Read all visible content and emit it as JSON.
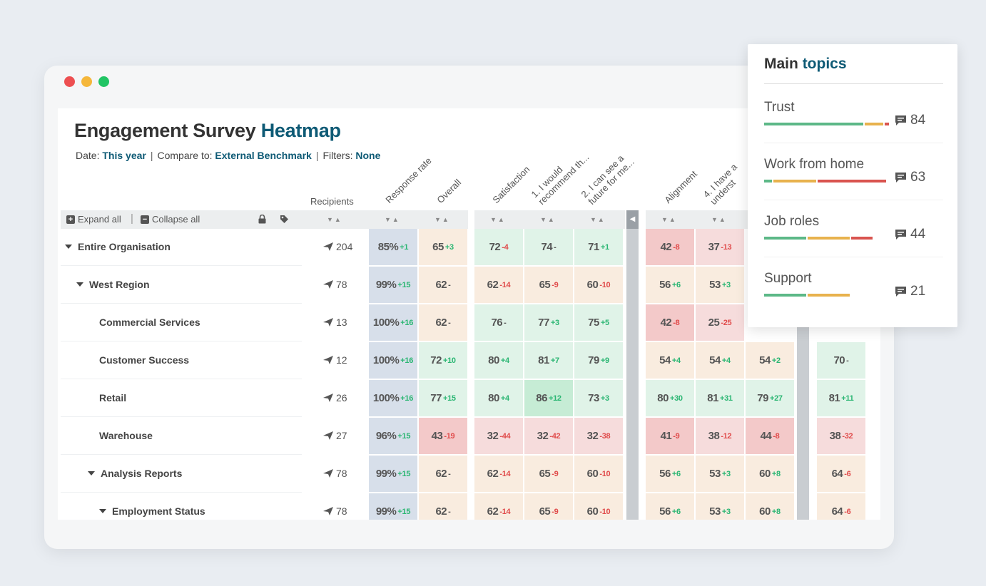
{
  "window": {
    "controls": [
      "close",
      "minimize",
      "maximize"
    ]
  },
  "title": {
    "main": "Engagement Survey",
    "accent": "Heatmap"
  },
  "subline": {
    "date_label": "Date:",
    "date_value": "This year",
    "compare_label": "Compare to:",
    "compare_value": "External Benchmark",
    "filters_label": "Filters:",
    "filters_value": "None"
  },
  "toolbar": {
    "expand_all": "Expand all",
    "collapse_all": "Collapse all",
    "lock_icon": "lock-icon",
    "tag_icon": "tag-icon"
  },
  "headers": {
    "recipients": "Recipients",
    "response_rate": "Response rate",
    "overall": "Overall",
    "satisfaction": "Satisfaction",
    "q1": "1. I would\nrecommend th...",
    "q2": "2. I can see a\nfuture for me...",
    "alignment": "Alignment",
    "q4": "4. I have a\nunderst"
  },
  "rows": [
    {
      "label": "Entire Organisation",
      "caret": true,
      "recipients": "204",
      "cells": [
        [
          "85%",
          "+1"
        ],
        [
          "65",
          "+3"
        ],
        [
          "72",
          "-4"
        ],
        [
          "74",
          "-"
        ],
        [
          "71",
          "+1"
        ],
        [
          "42",
          "-8"
        ],
        [
          "37",
          "-13"
        ],
        [
          "",
          ""
        ],
        [
          "",
          ""
        ]
      ]
    },
    {
      "label": "West Region",
      "caret": true,
      "recipients": "78",
      "cells": [
        [
          "99%",
          "+15"
        ],
        [
          "62",
          "-"
        ],
        [
          "62",
          "-14"
        ],
        [
          "65",
          "-9"
        ],
        [
          "60",
          "-10"
        ],
        [
          "56",
          "+6"
        ],
        [
          "53",
          "+3"
        ],
        [
          "",
          ""
        ],
        [
          "",
          ""
        ]
      ]
    },
    {
      "label": "Commercial Services",
      "caret": false,
      "recipients": "13",
      "cells": [
        [
          "100%",
          "+16"
        ],
        [
          "62",
          "-"
        ],
        [
          "76",
          "-"
        ],
        [
          "77",
          "+3"
        ],
        [
          "75",
          "+5"
        ],
        [
          "42",
          "-8"
        ],
        [
          "25",
          "-25"
        ],
        [
          "",
          ""
        ],
        [
          "",
          ""
        ]
      ]
    },
    {
      "label": "Customer Success",
      "caret": false,
      "recipients": "12",
      "cells": [
        [
          "100%",
          "+16"
        ],
        [
          "72",
          "+10"
        ],
        [
          "80",
          "+4"
        ],
        [
          "81",
          "+7"
        ],
        [
          "79",
          "+9"
        ],
        [
          "54",
          "+4"
        ],
        [
          "54",
          "+4"
        ],
        [
          "54",
          "+2"
        ],
        [
          "70",
          "-"
        ]
      ]
    },
    {
      "label": "Retail",
      "caret": false,
      "recipients": "26",
      "cells": [
        [
          "100%",
          "+16"
        ],
        [
          "77",
          "+15"
        ],
        [
          "80",
          "+4"
        ],
        [
          "86",
          "+12"
        ],
        [
          "73",
          "+3"
        ],
        [
          "80",
          "+30"
        ],
        [
          "81",
          "+31"
        ],
        [
          "79",
          "+27"
        ],
        [
          "81",
          "+11"
        ]
      ]
    },
    {
      "label": "Warehouse",
      "caret": false,
      "recipients": "27",
      "cells": [
        [
          "96%",
          "+15"
        ],
        [
          "43",
          "-19"
        ],
        [
          "32",
          "-44"
        ],
        [
          "32",
          "-42"
        ],
        [
          "32",
          "-38"
        ],
        [
          "41",
          "-9"
        ],
        [
          "38",
          "-12"
        ],
        [
          "44",
          "-8"
        ],
        [
          "38",
          "-32"
        ]
      ]
    },
    {
      "label": "Analysis Reports",
      "caret": true,
      "recipients": "78",
      "cells": [
        [
          "99%",
          "+15"
        ],
        [
          "62",
          "-"
        ],
        [
          "62",
          "-14"
        ],
        [
          "65",
          "-9"
        ],
        [
          "60",
          "-10"
        ],
        [
          "56",
          "+6"
        ],
        [
          "53",
          "+3"
        ],
        [
          "60",
          "+8"
        ],
        [
          "64",
          "-6"
        ]
      ]
    },
    {
      "label": "Employment Status",
      "caret": true,
      "recipients": "78",
      "cells": [
        [
          "99%",
          "+15"
        ],
        [
          "62",
          "-"
        ],
        [
          "62",
          "-14"
        ],
        [
          "65",
          "-9"
        ],
        [
          "60",
          "-10"
        ],
        [
          "56",
          "+6"
        ],
        [
          "53",
          "+3"
        ],
        [
          "60",
          "+8"
        ],
        [
          "64",
          "-6"
        ]
      ]
    }
  ],
  "colors": {
    "accent": "#0e5a75",
    "response": "#d7dfea",
    "neutral": "#f9ecdf",
    "light_green": "#e0f3e8",
    "green": "#c6ecd5",
    "light_red": "#f6dcdc",
    "red": "#f3c9c9"
  },
  "popup": {
    "title_main": "Main",
    "title_accent": "topics",
    "topics": [
      {
        "name": "Trust",
        "count": "84"
      },
      {
        "name": "Work from home",
        "count": "63"
      },
      {
        "name": "Job roles",
        "count": "44"
      },
      {
        "name": "Support",
        "count": "21"
      }
    ]
  }
}
